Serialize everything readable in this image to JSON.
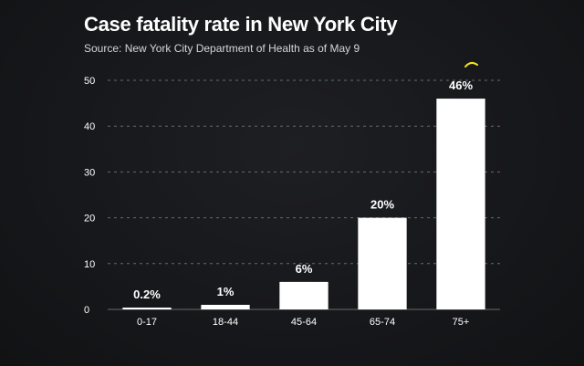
{
  "chart_data": {
    "type": "bar",
    "title": "Case fatality rate in New York City",
    "subtitle": "Source: New York City Department of Health as of May 9",
    "categories": [
      "0-17",
      "18-44",
      "45-64",
      "65-74",
      "75+"
    ],
    "values": [
      0.2,
      1,
      6,
      20,
      46
    ],
    "data_labels": [
      "0.2%",
      "1%",
      "6%",
      "20%",
      "46%"
    ],
    "ylim": [
      0,
      50
    ],
    "yticks": [
      0,
      10,
      20,
      30,
      40,
      50
    ],
    "xlabel": "",
    "ylabel": "",
    "grid": true,
    "legend": "none",
    "colors": {
      "background": "#17181b",
      "bar": "#ffffff",
      "grid": "#6a6a6a",
      "text": "#ffffff",
      "accent": "#f2e21a"
    }
  }
}
